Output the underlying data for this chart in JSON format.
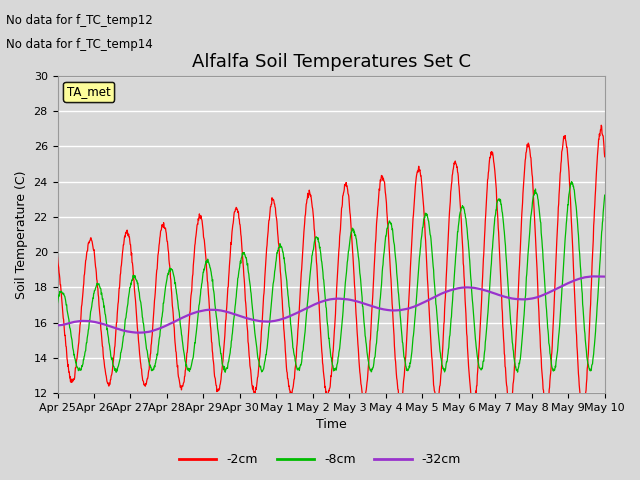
{
  "title": "Alfalfa Soil Temperatures Set C",
  "xlabel": "Time",
  "ylabel": "Soil Temperature (C)",
  "ylim": [
    12,
    30
  ],
  "yticks": [
    12,
    14,
    16,
    18,
    20,
    22,
    24,
    26,
    28,
    30
  ],
  "text_no_data": [
    "No data for f_TC_temp12",
    "No data for f_TC_temp14"
  ],
  "legend_label": "TA_met",
  "legend_entries": [
    "-2cm",
    "-8cm",
    "-32cm"
  ],
  "legend_colors": [
    "#ff0000",
    "#00bb00",
    "#9933cc"
  ],
  "x_tick_labels": [
    "Apr 25",
    "Apr 26",
    "Apr 27",
    "Apr 28",
    "Apr 29",
    "Apr 30",
    "May 1",
    "May 2",
    "May 3",
    "May 4",
    "May 5",
    "May 6",
    "May 7",
    "May 8",
    "May 9",
    "May 10"
  ],
  "background_color": "#d8d8d8",
  "plot_bg_color": "#d8d8d8",
  "grid_color": "#ffffff",
  "title_fontsize": 13,
  "axis_fontsize": 9,
  "tick_fontsize": 8
}
